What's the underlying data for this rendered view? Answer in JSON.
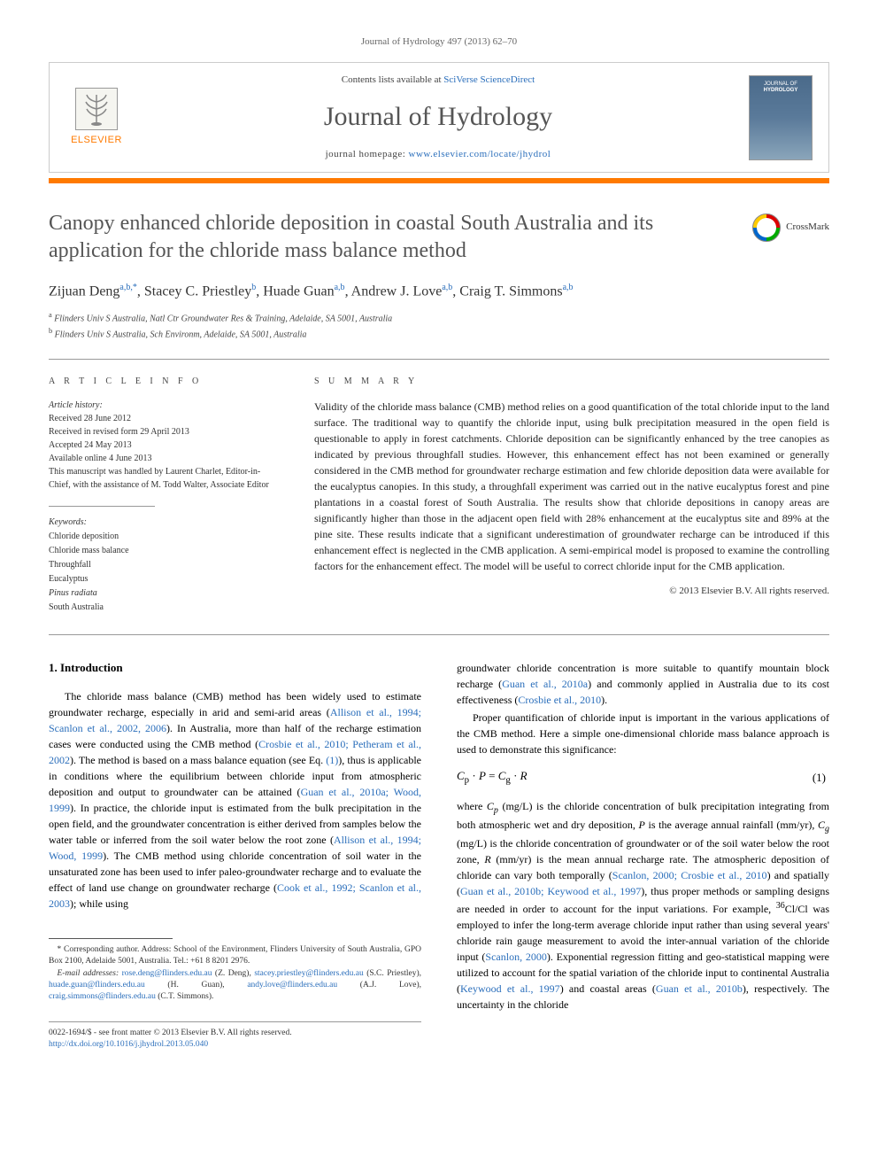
{
  "header_ref": "Journal of Hydrology 497 (2013) 62–70",
  "masthead": {
    "publisher": "ELSEVIER",
    "contents_prefix": "Contents lists available at ",
    "contents_link": "SciVerse ScienceDirect",
    "journal_title": "Journal of Hydrology",
    "homepage_prefix": "journal homepage: ",
    "homepage_url": "www.elsevier.com/locate/jhydrol",
    "cover_top": "JOURNAL OF",
    "cover_main": "HYDROLOGY"
  },
  "crossmark_label": "CrossMark",
  "article_title": "Canopy enhanced chloride deposition in coastal South Australia and its application for the chloride mass balance method",
  "authors_html": "Zijuan Deng<sup>a,b,*</sup>, Stacey C. Priestley<sup>b</sup>, Huade Guan<sup>a,b</sup>, Andrew J. Love<sup>a,b</sup>, Craig T. Simmons<sup>a,b</sup>",
  "affiliations": [
    {
      "mark": "a",
      "text": "Flinders Univ S Australia, Natl Ctr Groundwater Res & Training, Adelaide, SA 5001, Australia"
    },
    {
      "mark": "b",
      "text": "Flinders Univ S Australia, Sch Environm, Adelaide, SA 5001, Australia"
    }
  ],
  "article_info": {
    "head": "A R T I C L E   I N F O",
    "history_label": "Article history:",
    "received": "Received 28 June 2012",
    "revised": "Received in revised form 29 April 2013",
    "accepted": "Accepted 24 May 2013",
    "online": "Available online 4 June 2013",
    "handled": "This manuscript was handled by Laurent Charlet, Editor-in-Chief, with the assistance of M. Todd Walter, Associate Editor",
    "keywords_label": "Keywords:",
    "keywords": [
      "Chloride deposition",
      "Chloride mass balance",
      "Throughfall",
      "Eucalyptus",
      "Pinus radiata",
      "South Australia"
    ]
  },
  "summary": {
    "head": "S U M M A R Y",
    "text": "Validity of the chloride mass balance (CMB) method relies on a good quantification of the total chloride input to the land surface. The traditional way to quantify the chloride input, using bulk precipitation measured in the open field is questionable to apply in forest catchments. Chloride deposition can be significantly enhanced by the tree canopies as indicated by previous throughfall studies. However, this enhancement effect has not been examined or generally considered in the CMB method for groundwater recharge estimation and few chloride deposition data were available for the eucalyptus canopies. In this study, a throughfall experiment was carried out in the native eucalyptus forest and pine plantations in a coastal forest of South Australia. The results show that chloride depositions in canopy areas are significantly higher than those in the adjacent open field with 28% enhancement at the eucalyptus site and 89% at the pine site. These results indicate that a significant underestimation of groundwater recharge can be introduced if this enhancement effect is neglected in the CMB application. A semi-empirical model is proposed to examine the controlling factors for the enhancement effect. The model will be useful to correct chloride input for the CMB application.",
    "copyright": "© 2013 Elsevier B.V. All rights reserved."
  },
  "intro_head": "1. Introduction",
  "body_left": "The chloride mass balance (CMB) method has been widely used to estimate groundwater recharge, especially in arid and semi-arid areas (<a>Allison et al., 1994; Scanlon et al., 2002, 2006</a>). In Australia, more than half of the recharge estimation cases were conducted using the CMB method (<a>Crosbie et al., 2010; Petheram et al., 2002</a>). The method is based on a mass balance equation (see Eq. <a>(1)</a>), thus is applicable in conditions where the equilibrium between chloride input from atmospheric deposition and output to groundwater can be attained (<a>Guan et al., 2010a; Wood, 1999</a>). In practice, the chloride input is estimated from the bulk precipitation in the open field, and the groundwater concentration is either derived from samples below the water table or inferred from the soil water below the root zone (<a>Allison et al., 1994; Wood, 1999</a>). The CMB method using chloride concentration of soil water in the unsaturated zone has been used to infer paleo-groundwater recharge and to evaluate the effect of land use change on groundwater recharge (<a>Cook et al., 1992; Scanlon et al., 2003</a>); while using",
  "body_right_top": "groundwater chloride concentration is more suitable to quantify mountain block recharge (<a>Guan et al., 2010a</a>) and commonly applied in Australia due to its cost effectiveness (<a>Crosbie et al., 2010</a>).",
  "body_right_para2": "Proper quantification of chloride input is important in the various applications of the CMB method. Here a simple one-dimensional chloride mass balance approach is used to demonstrate this significance:",
  "equation": {
    "expr": "C_p · P = C_g · R",
    "num": "(1)"
  },
  "body_right_after_eq": "where <i>C<sub>p</sub></i> (mg/L) is the chloride concentration of bulk precipitation integrating from both atmospheric wet and dry deposition, <i>P</i> is the average annual rainfall (mm/yr), <i>C<sub>g</sub></i> (mg/L) is the chloride concentration of groundwater or of the soil water below the root zone, <i>R</i> (mm/yr) is the mean annual recharge rate. The atmospheric deposition of chloride can vary both temporally (<a>Scanlon, 2000; Crosbie et al., 2010</a>) and spatially (<a>Guan et al., 2010b; Keywood et al., 1997</a>), thus proper methods or sampling designs are needed in order to account for the input variations. For example, <sup>36</sup>Cl/Cl was employed to infer the long-term average chloride input rather than using several years' chloride rain gauge measurement to avoid the inter-annual variation of the chloride input (<a>Scanlon, 2000</a>). Exponential regression fitting and geo-statistical mapping were utilized to account for the spatial variation of the chloride input to continental Australia (<a>Keywood et al., 1997</a>) and coastal areas (<a>Guan et al., 2010b</a>), respectively. The uncertainty in the chloride",
  "footnote": {
    "corr_label": "* Corresponding author. Address: School of the Environment, Flinders University of South Australia, GPO Box 2100, Adelaide 5001, Australia. Tel.: +61 8 8201 2976.",
    "emails_label": "E-mail addresses:",
    "emails": " <a>rose.deng@flinders.edu.au</a> (Z. Deng), <a>stacey.priestley@flinders.edu.au</a> (S.C. Priestley), <a>huade.guan@flinders.edu.au</a> (H. Guan), <a>andy.love@flinders.edu.au</a> (A.J. Love), <a>craig.simmons@flinders.edu.au</a> (C.T. Simmons)."
  },
  "bottom": {
    "issn": "0022-1694/$ - see front matter © 2013 Elsevier B.V. All rights reserved.",
    "doi": "http://dx.doi.org/10.1016/j.jhydrol.2013.05.040"
  },
  "colors": {
    "accent_orange": "#ff7a00",
    "link_blue": "#2a6ebb",
    "text_gray": "#555555",
    "border_gray": "#999999"
  }
}
